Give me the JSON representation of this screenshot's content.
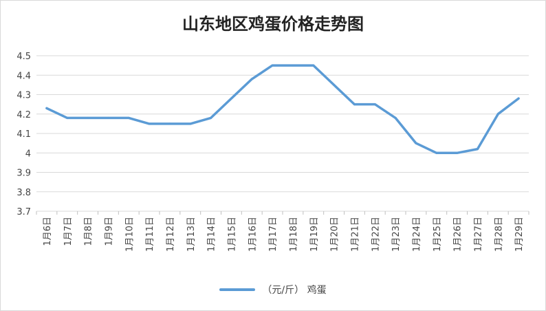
{
  "chart_data": {
    "type": "line",
    "title": "山东地区鸡蛋价格走势图",
    "categories": [
      "1月6日",
      "1月7日",
      "1月8日",
      "1月9日",
      "1月10日",
      "1月11日",
      "1月12日",
      "1月13日",
      "1月14日",
      "1月15日",
      "1月16日",
      "1月17日",
      "1月18日",
      "1月19日",
      "1月20日",
      "1月21日",
      "1月22日",
      "1月23日",
      "1月24日",
      "1月25日",
      "1月26日",
      "1月27日",
      "1月28日",
      "1月29日"
    ],
    "series": [
      {
        "name": "（元/斤） 鸡蛋",
        "values": [
          4.23,
          4.18,
          4.18,
          4.18,
          4.18,
          4.15,
          4.15,
          4.15,
          4.18,
          4.28,
          4.38,
          4.45,
          4.45,
          4.45,
          4.35,
          4.25,
          4.25,
          4.18,
          4.05,
          4.0,
          4.0,
          4.02,
          4.2,
          4.28
        ],
        "color": "#5b9bd5"
      }
    ],
    "ylim": [
      3.7,
      4.5
    ],
    "yticks": [
      "3.7",
      "3.8",
      "3.9",
      "4",
      "4.1",
      "4.2",
      "4.3",
      "4.4",
      "4.5"
    ],
    "grid": true,
    "legend_position": "bottom"
  }
}
